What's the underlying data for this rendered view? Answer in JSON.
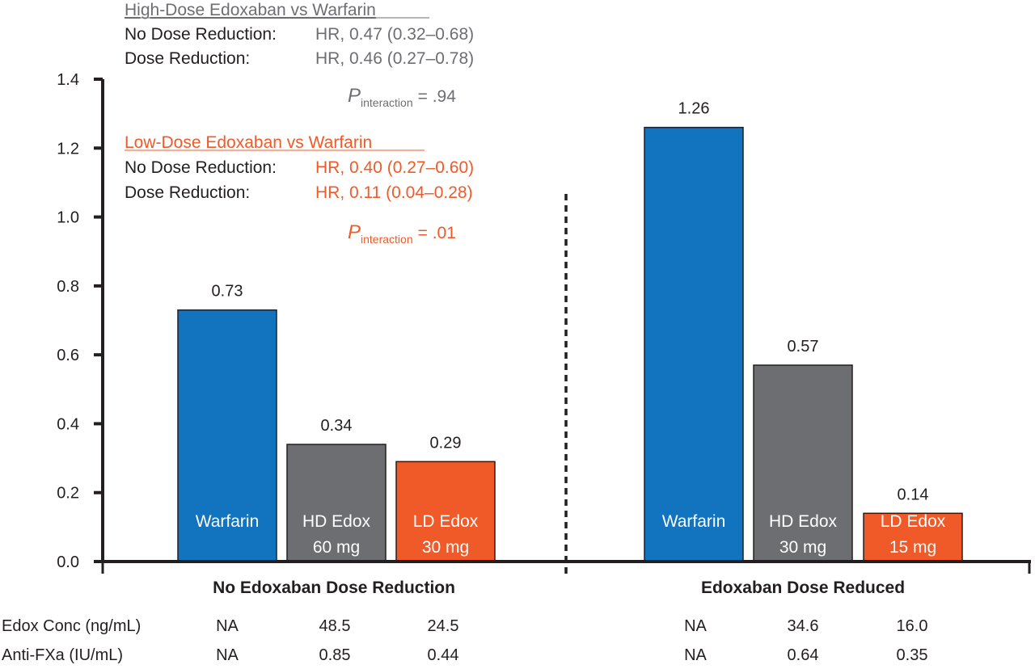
{
  "colors": {
    "warfarin": "#1273bf",
    "hd": "#6d6e71",
    "ld": "#f05a28",
    "gray_text": "#6d6e71",
    "orange_text": "#f05a28"
  },
  "annotations": {
    "hd": {
      "title": "High-Dose Edoxaban vs Warfarin",
      "row1_label": "No Dose Reduction:",
      "row1_value": "HR, 0.47 (0.32–0.68)",
      "row2_label": "Dose Reduction:",
      "row2_value": "HR, 0.46 (0.27–0.78)",
      "p_symbol": "P",
      "p_sub": "interaction",
      "p_value": "= .94"
    },
    "ld": {
      "title": "Low-Dose Edoxaban vs Warfarin",
      "row1_label": "No Dose Reduction:",
      "row1_value": "HR, 0.40 (0.27–0.60)",
      "row2_label": "Dose Reduction:",
      "row2_value": "HR, 0.11 (0.04–0.28)",
      "p_symbol": "P",
      "p_sub": "interaction",
      "p_value": "= .01"
    }
  },
  "table": {
    "rows": [
      {
        "label": "Edox Conc (ng/mL)",
        "values": [
          "NA",
          "48.5",
          "24.5",
          "NA",
          "34.6",
          "16.0"
        ]
      },
      {
        "label": "Anti-FXa (IU/mL)",
        "values": [
          "NA",
          "0.85",
          "0.44",
          "NA",
          "0.64",
          "0.35"
        ]
      }
    ]
  },
  "chart_data": {
    "type": "bar",
    "ylim": [
      0,
      1.4
    ],
    "yticks": [
      "0.0",
      "0.2",
      "0.4",
      "0.6",
      "0.8",
      "1.0",
      "1.2",
      "1.4"
    ],
    "grid": false,
    "groups": [
      {
        "label": "No Edoxaban Dose Reduction",
        "bars": [
          {
            "label": [
              "Warfarin"
            ],
            "value": 0.73,
            "value_label": "0.73",
            "color_key": "warfarin"
          },
          {
            "label": [
              "HD Edox",
              "60 mg"
            ],
            "value": 0.34,
            "value_label": "0.34",
            "color_key": "hd"
          },
          {
            "label": [
              "LD Edox",
              "30 mg"
            ],
            "value": 0.29,
            "value_label": "0.29",
            "color_key": "ld"
          }
        ]
      },
      {
        "label": "Edoxaban Dose Reduced",
        "bars": [
          {
            "label": [
              "Warfarin"
            ],
            "value": 1.26,
            "value_label": "1.26",
            "color_key": "warfarin"
          },
          {
            "label": [
              "HD Edox",
              "30 mg"
            ],
            "value": 0.57,
            "value_label": "0.57",
            "color_key": "hd"
          },
          {
            "label": [
              "LD Edox",
              "15 mg"
            ],
            "value": 0.14,
            "value_label": "0.14",
            "color_key": "ld"
          }
        ]
      }
    ]
  }
}
